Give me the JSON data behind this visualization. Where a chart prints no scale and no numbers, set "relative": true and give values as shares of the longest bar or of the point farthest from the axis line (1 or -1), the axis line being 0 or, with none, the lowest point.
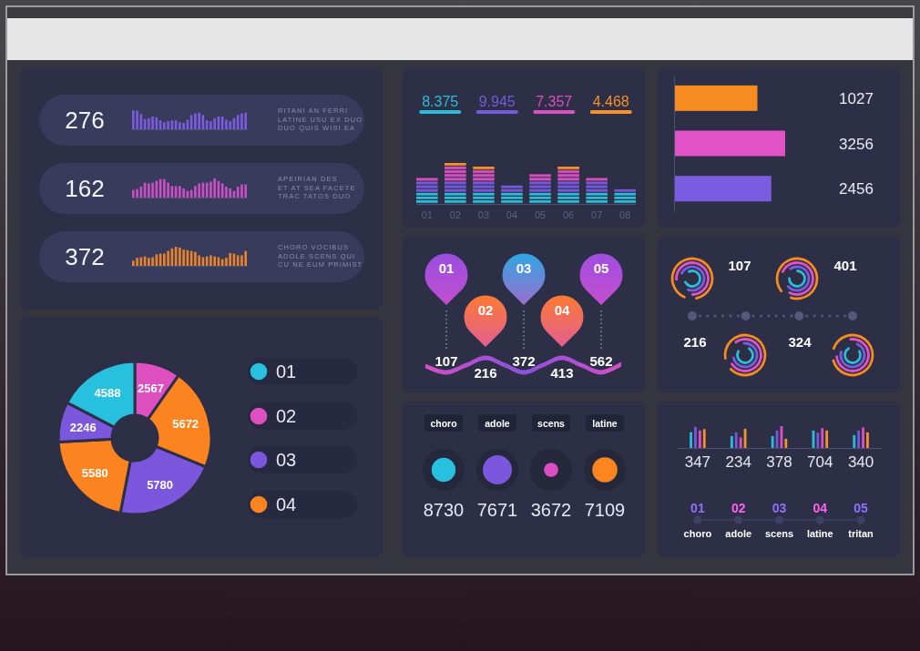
{
  "chart_data": [
    {
      "type": "bar",
      "relative": true,
      "title": "276",
      "categories": [
        null,
        null,
        null,
        null,
        null,
        null,
        null,
        null,
        null,
        null,
        null,
        null,
        null,
        null,
        null,
        null,
        null,
        null,
        null,
        null,
        null,
        null,
        null,
        null,
        null,
        null,
        null,
        null,
        null,
        null
      ],
      "values": [
        1,
        0.97,
        0.8,
        0.53,
        0.58,
        0.67,
        0.63,
        0.47,
        0.37,
        0.42,
        0.47,
        0.47,
        0.37,
        0.33,
        0.5,
        0.75,
        0.83,
        0.87,
        0.75,
        0.47,
        0.42,
        0.58,
        0.67,
        0.67,
        0.5,
        0.42,
        0.58,
        0.75,
        0.83,
        0.87
      ],
      "color": "#7b5ce0",
      "annotations": [
        "RITANI AN FERRI",
        "LATINE USU EX DUO",
        "DUO QUIS WISI EA"
      ]
    },
    {
      "type": "bar",
      "relative": true,
      "title": "162",
      "categories": [
        null,
        null,
        null,
        null,
        null,
        null,
        null,
        null,
        null,
        null,
        null,
        null,
        null,
        null,
        null,
        null,
        null,
        null,
        null,
        null,
        null,
        null,
        null,
        null,
        null,
        null,
        null,
        null,
        null,
        null
      ],
      "values": [
        0.4,
        0.45,
        0.57,
        0.78,
        0.74,
        0.78,
        0.88,
        0.97,
        0.97,
        0.78,
        0.6,
        0.6,
        0.6,
        0.48,
        0.34,
        0.4,
        0.6,
        0.74,
        0.78,
        0.78,
        0.83,
        1,
        0.86,
        0.74,
        0.57,
        0.48,
        0.34,
        0.57,
        0.69,
        0.69
      ],
      "color": "#c84fc4",
      "annotations": [
        "APEIRIAN DES",
        "ET AT SEA FACETE",
        "TRAC TATOS DUO"
      ]
    },
    {
      "type": "bar",
      "relative": true,
      "title": "372",
      "categories": [
        null,
        null,
        null,
        null,
        null,
        null,
        null,
        null,
        null,
        null,
        null,
        null,
        null,
        null,
        null,
        null,
        null,
        null,
        null,
        null,
        null,
        null,
        null,
        null,
        null,
        null,
        null,
        null,
        null,
        null
      ],
      "values": [
        0.27,
        0.42,
        0.45,
        0.49,
        0.42,
        0.45,
        0.6,
        0.64,
        0.64,
        0.78,
        0.91,
        1,
        0.96,
        0.85,
        0.82,
        0.78,
        0.73,
        0.55,
        0.45,
        0.49,
        0.55,
        0.49,
        0.45,
        0.35,
        0.42,
        0.67,
        0.64,
        0.55,
        0.55,
        0.78
      ],
      "color": "#e8832c",
      "annotations": [
        "CHORO VOCIBUS",
        "ADOLE SCENS QUI",
        "CU NE EUM PRIMIST"
      ]
    },
    {
      "type": "donut",
      "categories": [
        "02",
        "04",
        "03",
        "04",
        "03",
        "01"
      ],
      "values": [
        2567,
        5672,
        5780,
        5580,
        2246,
        4588
      ],
      "colors": [
        "#de4fc0",
        "#fb8420",
        "#7b57de",
        "#fb8420",
        "#7b57de",
        "#27c0de"
      ],
      "data_labels": true,
      "legend": "right"
    },
    {
      "type": "bar",
      "stacked": true,
      "relative": true,
      "categories": [
        "01",
        "02",
        "03",
        "04",
        "05",
        "06",
        "07",
        "08"
      ],
      "series": [
        {
          "name": "8.375",
          "color": "#2bbdd8",
          "values": [
            0.273,
            0.273,
            0.273,
            0.273,
            0.273,
            0.273,
            0.273,
            0.273
          ]
        },
        {
          "name": "9.945",
          "color": "#7659db",
          "values": [
            0.273,
            0.273,
            0.273,
            0.182,
            0.273,
            0.273,
            0.273,
            0.091
          ]
        },
        {
          "name": "7.357",
          "color": "#db4fc4",
          "values": [
            0.091,
            0.363,
            0.273,
            null,
            0.182,
            0.273,
            0.091,
            null
          ]
        },
        {
          "name": "4.468",
          "color": "#f7912a",
          "values": [
            null,
            0.091,
            0.091,
            null,
            null,
            0.091,
            null,
            null
          ]
        }
      ],
      "legend": "top"
    },
    {
      "type": "bar",
      "orientation": "horizontal",
      "relative": true,
      "categories": [
        null,
        null,
        null
      ],
      "values": [
        0.75,
        1,
        0.875
      ],
      "colors": [
        "#f68b1f",
        "#e052c6",
        "#7a5ce0"
      ],
      "annotations": [
        "1027",
        "3256",
        "2456"
      ]
    },
    {
      "type": "other",
      "categories": [
        "01",
        "02",
        "03",
        "04",
        "05"
      ],
      "values": [
        107,
        216,
        372,
        413,
        562
      ],
      "data_labels": true
    },
    {
      "type": "other",
      "values": [
        107,
        401,
        216,
        324
      ],
      "data_labels": true
    },
    {
      "type": "other",
      "categories": [
        "choro",
        "adole",
        "scens",
        "latine"
      ],
      "values": [
        8730,
        7671,
        3672,
        7109
      ],
      "data_labels": true
    },
    {
      "type": "bar",
      "relative": true,
      "categories": [
        "01",
        "02",
        "03",
        "04",
        "05"
      ],
      "series": [
        {
          "color": "#2bbdd8",
          "values": [
            0.72,
            0.54,
            0.54,
            0.8,
            0.59
          ]
        },
        {
          "color": "#7659db",
          "values": [
            0.97,
            0.71,
            0.8,
            0.71,
            0.8
          ]
        },
        {
          "color": "#db4fc4",
          "values": [
            0.8,
            0.48,
            1,
            0.91,
            0.94
          ]
        },
        {
          "color": "#f7912a",
          "values": [
            0.86,
            0.88,
            0.42,
            0.8,
            0.71
          ]
        }
      ],
      "annotations": [
        "347",
        "234",
        "378",
        "704",
        "340",
        "choro",
        "adole",
        "scens",
        "latine",
        "tritan"
      ]
    }
  ]
}
